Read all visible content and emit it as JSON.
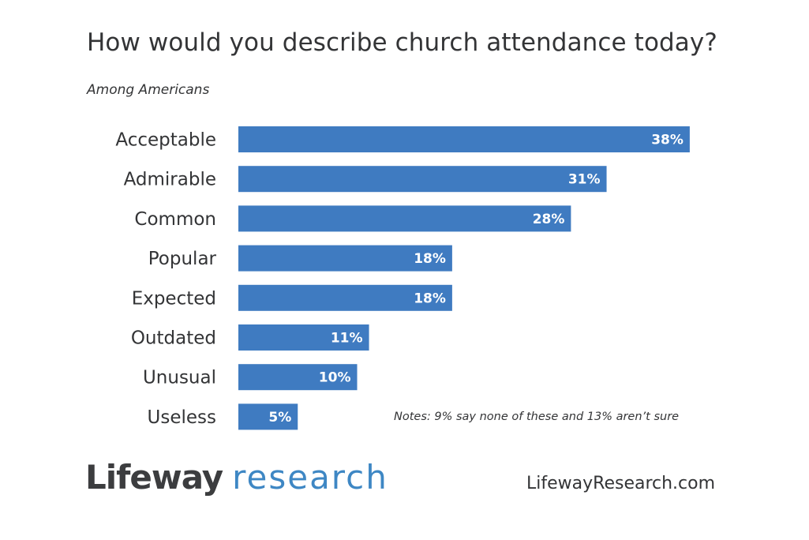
{
  "header": {
    "title": "How would you describe church attendance today?",
    "subtitle": "Among Americans"
  },
  "chart_data": {
    "type": "bar",
    "orientation": "horizontal",
    "categories": [
      "Acceptable",
      "Admirable",
      "Common",
      "Popular",
      "Expected",
      "Outdated",
      "Unusual",
      "Useless"
    ],
    "values": [
      38,
      31,
      28,
      18,
      18,
      11,
      10,
      5
    ],
    "value_labels": [
      "38%",
      "31%",
      "28%",
      "18%",
      "18%",
      "11%",
      "10%",
      "5%"
    ],
    "unit": "%",
    "bar_color": "#3f7bc1",
    "grid": false,
    "legend": "none"
  },
  "note": "Notes: 9% say none of these and 13% aren’t sure",
  "footer": {
    "logo_brand": "Lifeway",
    "logo_suffix": "research",
    "website": "LifewayResearch.com"
  }
}
